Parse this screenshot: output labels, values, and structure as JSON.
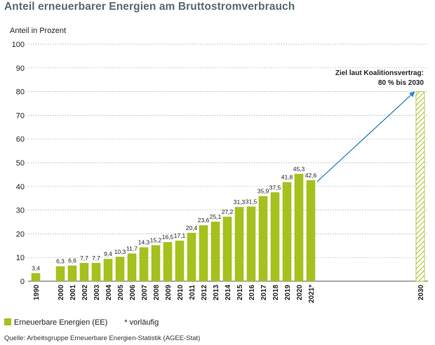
{
  "title": "Anteil erneuerbarer Energien am Bruttostromverbrauch",
  "legend": {
    "series_label": "Erneuerbare Energien (EE)",
    "note": "* vorläufig"
  },
  "source": "Quelle: Arbeitsgruppe Erneuerbare Energien-Statistik (AGEE-Stat)",
  "colors": {
    "bar": "#a4c11e",
    "target_hatch": "#a4c11e",
    "arrow": "#2b86c5",
    "grid": "#9aa4aa",
    "text": "#222222"
  },
  "chart_data": {
    "type": "bar",
    "ylabel": "Anteil in Prozent",
    "ylim": [
      0,
      100
    ],
    "yticks": [
      0,
      10,
      20,
      30,
      40,
      50,
      60,
      70,
      80,
      90,
      100
    ],
    "grid": true,
    "categories": [
      "1990",
      "2000",
      "2001",
      "2002",
      "2003",
      "2004",
      "2005",
      "2006",
      "2007",
      "2008",
      "2009",
      "2010",
      "2011",
      "2012",
      "2013",
      "2014",
      "2015",
      "2016",
      "2017",
      "2018",
      "2019",
      "2020",
      "2021*"
    ],
    "values": [
      3.4,
      6.3,
      6.6,
      7.7,
      7.7,
      9.4,
      10.3,
      11.7,
      14.3,
      15.2,
      16.5,
      17.1,
      20.4,
      23.6,
      25.1,
      27.2,
      31.3,
      31.5,
      35.9,
      37.5,
      41.8,
      45.3,
      42.6
    ],
    "value_labels": [
      "3,4",
      "6,3",
      "6,6",
      "7,7",
      "7,7",
      "9,4",
      "10,3",
      "11,7",
      "14,3",
      "15,2",
      "16,5",
      "17,1",
      "20,4",
      "23,6",
      "25,1",
      "27,2",
      "31,3",
      "31,5",
      "35,9",
      "37,5",
      "41,8",
      "45,3",
      "42,6"
    ],
    "target": {
      "category": "2030",
      "value": 80,
      "annotation_line1": "Ziel laut Koalitionsvertrag:",
      "annotation_line2": "80 % bis 2030"
    }
  }
}
